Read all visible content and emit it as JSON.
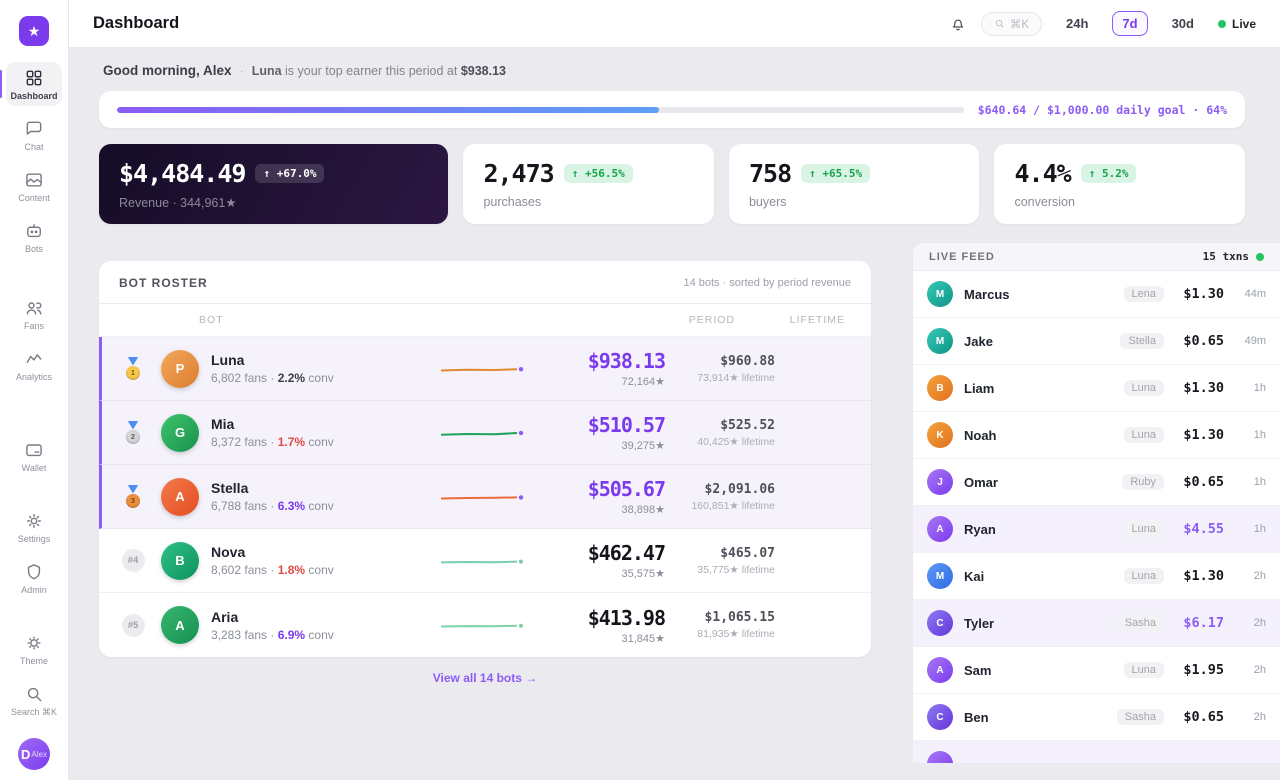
{
  "colors": {
    "accent": "#7c3aed",
    "accent_light": "#8b5cf6",
    "positive": "#17a34a",
    "negative": "#e14b44",
    "live_dot": "#22c55e"
  },
  "app": {
    "logo_glyph": "★"
  },
  "sidebar": {
    "items": [
      {
        "label": "Dashboard"
      },
      {
        "label": "Chat"
      },
      {
        "label": "Content"
      },
      {
        "label": "Bots"
      },
      {
        "label": "Fans"
      },
      {
        "label": "Analytics"
      },
      {
        "label": "Wallet"
      },
      {
        "label": "Settings"
      },
      {
        "label": "Admin"
      },
      {
        "label": "Theme"
      },
      {
        "label": "Search ⌘K"
      }
    ],
    "avatar_initial": "D",
    "avatar_name": "Alex"
  },
  "header": {
    "title": "Dashboard",
    "search_hint": "⌘K",
    "ranges": [
      {
        "label": "24h"
      },
      {
        "label": "7d"
      },
      {
        "label": "30d"
      }
    ],
    "live_label": "Live"
  },
  "greeting": {
    "hello": "Good morning, Alex",
    "sep": "·",
    "bot": "Luna",
    "rest": " is your top earner this period at ",
    "amount": "$938.13"
  },
  "goal": {
    "label": "$640.64 / $1,000.00 daily goal · 64%",
    "percent": 64
  },
  "stats": [
    {
      "value": "$4,484.49",
      "badge": "↑ +67.0%",
      "sub": "Revenue · 344,961★"
    },
    {
      "value": "2,473",
      "badge": "↑ +56.5%",
      "sub": "purchases"
    },
    {
      "value": "758",
      "badge": "↑ +65.5%",
      "sub": "buyers"
    },
    {
      "value": "4.4%",
      "badge": "↑ 5.2%",
      "sub": "conversion"
    }
  ],
  "roster": {
    "title": "BOT ROSTER",
    "meta": "14 bots · sorted by period revenue",
    "columns": {
      "bot": "BOT",
      "period": "PERIOD",
      "lifetime": "LIFETIME"
    },
    "view_all": "View all 14 bots →",
    "rows": [
      {
        "medal_num": "1",
        "medal_color": "#f7c94b",
        "name": "Luna",
        "fans": "6,802 fans · ",
        "conv": "2.2%",
        "conv_color": "#3a3d47",
        "conv_suffix": " conv",
        "avatar_letter": "P",
        "avatar_bg": "linear-gradient(135deg,#f3a95c,#dc7c2e)",
        "spark_color": "#e08a2e",
        "spark_dot": "#8b5cf6",
        "period": "$938.13",
        "period_stars": "72,164★",
        "lifetime": "$960.88",
        "lifetime_stars": "73,914★ lifetime"
      },
      {
        "medal_num": "2",
        "medal_color": "#d3d6dc",
        "name": "Mia",
        "fans": "8,372 fans · ",
        "conv": "1.7%",
        "conv_color": "#e14b44",
        "conv_suffix": " conv",
        "avatar_letter": "G",
        "avatar_bg": "linear-gradient(135deg,#3ec46d,#18914b)",
        "spark_color": "#1ea35a",
        "spark_dot": "#8b5cf6",
        "period": "$510.57",
        "period_stars": "39,275★",
        "lifetime": "$525.52",
        "lifetime_stars": "40,425★ lifetime"
      },
      {
        "medal_num": "3",
        "medal_color": "#ee8f3e",
        "name": "Stella",
        "fans": "6,788 fans · ",
        "conv": "6.3%",
        "conv_color": "#7c3aed",
        "conv_suffix": " conv",
        "avatar_letter": "A",
        "avatar_bg": "linear-gradient(135deg,#f4794a,#e34e22)",
        "spark_color": "#ed6a3a",
        "spark_dot": "#8b5cf6",
        "period": "$505.67",
        "period_stars": "38,898★",
        "lifetime": "$2,091.06",
        "lifetime_stars": "160,851★ lifetime"
      },
      {
        "rank_label": "#4",
        "name": "Nova",
        "fans": "8,602 fans · ",
        "conv": "1.8%",
        "conv_color": "#e14b44",
        "conv_suffix": " conv",
        "avatar_letter": "B",
        "avatar_bg": "linear-gradient(135deg,#2ec184,#0f9160)",
        "spark_color": "#79ceab",
        "spark_dot": "#79ceab",
        "period": "$462.47",
        "period_stars": "35,575★",
        "lifetime": "$465.07",
        "lifetime_stars": "35,775★ lifetime"
      },
      {
        "rank_label": "#5",
        "name": "Aria",
        "fans": "3,283 fans · ",
        "conv": "6.9%",
        "conv_color": "#7c3aed",
        "conv_suffix": " conv",
        "avatar_letter": "A",
        "avatar_bg": "linear-gradient(135deg,#37b56e,#159150)",
        "spark_color": "#7fd2a8",
        "spark_dot": "#7fd2a8",
        "period": "$413.98",
        "period_stars": "31,845★",
        "lifetime": "$1,065.15",
        "lifetime_stars": "81,935★ lifetime"
      }
    ]
  },
  "feed": {
    "title": "LIVE FEED",
    "count": "15 txns",
    "rows": [
      {
        "letter": "M",
        "bg": "linear-gradient(135deg,#35c9b4,#0f9488)",
        "name": "Marcus",
        "tag": "Lena",
        "amount": "$1.30",
        "time": "44m"
      },
      {
        "letter": "M",
        "bg": "linear-gradient(135deg,#35c9b4,#0f9488)",
        "name": "Jake",
        "tag": "Stella",
        "amount": "$0.65",
        "time": "49m"
      },
      {
        "letter": "B",
        "bg": "linear-gradient(135deg,#f3a43c,#e2701f)",
        "name": "Liam",
        "tag": "Luna",
        "amount": "$1.30",
        "time": "1h"
      },
      {
        "letter": "K",
        "bg": "linear-gradient(135deg,#f3a43c,#e2701f)",
        "name": "Noah",
        "tag": "Luna",
        "amount": "$1.30",
        "time": "1h"
      },
      {
        "letter": "J",
        "bg": "linear-gradient(135deg,#a678f5,#7c3aed)",
        "name": "Omar",
        "tag": "Ruby",
        "amount": "$0.65",
        "time": "1h"
      },
      {
        "letter": "A",
        "bg": "linear-gradient(135deg,#a678f5,#7c3aed)",
        "name": "Ryan",
        "tag": "Luna",
        "amount": "$4.55",
        "time": "1h"
      },
      {
        "letter": "M",
        "bg": "linear-gradient(135deg,#5d9bf7,#2f6ae0)",
        "name": "Kai",
        "tag": "Luna",
        "amount": "$1.30",
        "time": "2h"
      },
      {
        "letter": "C",
        "bg": "linear-gradient(135deg,#8a7cf2,#6633d9)",
        "name": "Tyler",
        "tag": "Sasha",
        "amount": "$6.17",
        "time": "2h"
      },
      {
        "letter": "A",
        "bg": "linear-gradient(135deg,#a678f5,#7c3aed)",
        "name": "Sam",
        "tag": "Luna",
        "amount": "$1.95",
        "time": "2h"
      },
      {
        "letter": "C",
        "bg": "linear-gradient(135deg,#8a7cf2,#6633d9)",
        "name": "Ben",
        "tag": "Sasha",
        "amount": "$0.65",
        "time": "2h"
      },
      {
        "letter": "",
        "bg": "linear-gradient(135deg,#a678f5,#7c3aed)",
        "name": "",
        "tag": "",
        "amount": "",
        "time": ""
      }
    ]
  }
}
